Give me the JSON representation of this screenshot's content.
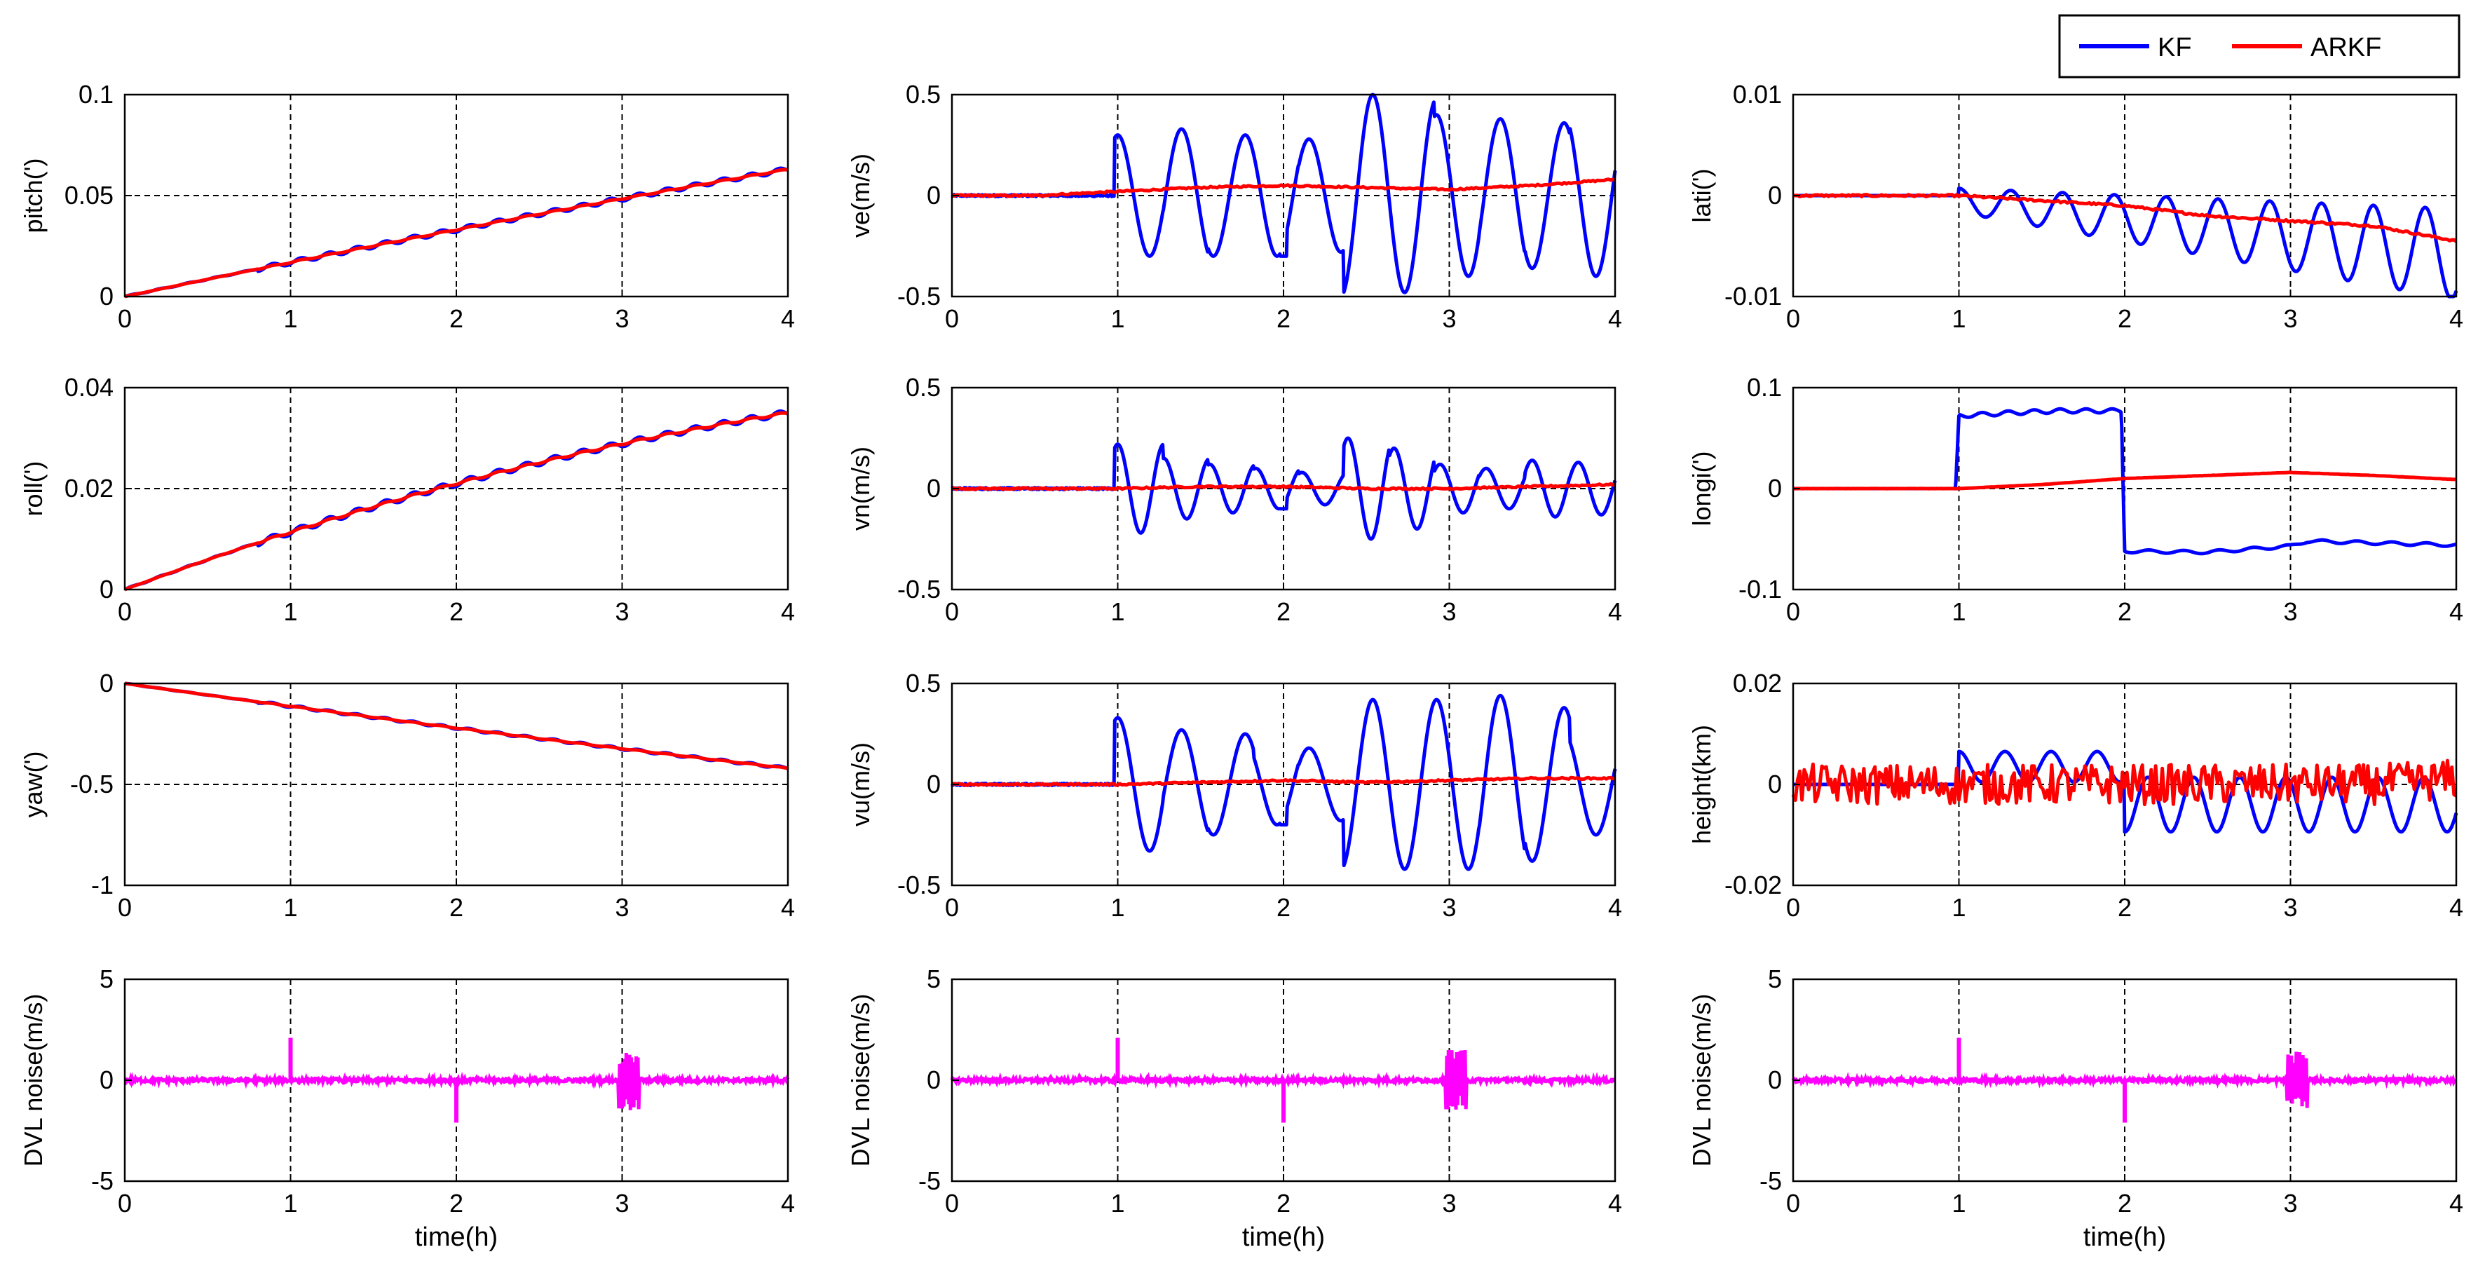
{
  "chart_data": {
    "type": "line",
    "title": "",
    "grid": "dashed at major ticks",
    "legend": {
      "position": "top-right",
      "entries": [
        {
          "label": "KF",
          "color": "#0000ff"
        },
        {
          "label": "ARKF",
          "color": "#ff0000"
        }
      ]
    },
    "noise_color": "#ff00ff",
    "x_ticks": [
      "0",
      "1",
      "2",
      "3",
      "4"
    ],
    "xlim": [
      0,
      4
    ],
    "xlabel": "time(h)",
    "panels": [
      {
        "ylabel": "pitch(')",
        "ylim": [
          0,
          0.1
        ],
        "yticks": [
          0,
          0.05,
          0.1
        ],
        "ytick_labels": [
          "0",
          "0.05",
          "0.1"
        ],
        "kf": {
          "kind": "smooth",
          "start": 0,
          "end": 0.063,
          "curve": 0.9,
          "ripple": 0.0012
        },
        "arkf": {
          "kind": "smooth",
          "start": 0,
          "end": 0.063,
          "curve": 0.9,
          "ripple": 0.0003
        }
      },
      {
        "ylabel": "ve(m/s)",
        "ylim": [
          -0.5,
          0.5
        ],
        "yticks": [
          -0.5,
          0,
          0.5
        ],
        "ytick_labels": [
          "-0.5",
          "0",
          "0.5"
        ],
        "kf": {
          "kind": "osc",
          "peaks": [
            0.3,
            0.33,
            0.3,
            0.3,
            0.28,
            0.5,
            0.48,
            0.4,
            0.38,
            0.36,
            0.4
          ],
          "freq": 2.6
        },
        "arkf": {
          "kind": "flat",
          "values": [
            0,
            0,
            0.02,
            0.04,
            0.05,
            0.04,
            0.03,
            0.05,
            0.08
          ]
        }
      },
      {
        "ylabel": "lati(')",
        "ylim": [
          -0.01,
          0.01
        ],
        "yticks": [
          -0.01,
          0,
          0.01
        ],
        "ytick_labels": [
          "-0.01",
          "0",
          "0.01"
        ],
        "kf": {
          "kind": "decay_osc",
          "amp_start": 0.0012,
          "amp_end": 0.0045,
          "trend_end": -0.005,
          "freq": 3.2
        },
        "arkf": {
          "kind": "trend",
          "values": [
            0,
            0,
            0,
            -0.0005,
            -0.001,
            -0.002,
            -0.0025,
            -0.003,
            -0.0045
          ]
        }
      },
      {
        "ylabel": "roll(')",
        "ylim": [
          0,
          0.04
        ],
        "yticks": [
          0,
          0.02,
          0.04
        ],
        "ytick_labels": [
          "0",
          "0.02",
          "0.04"
        ],
        "kf": {
          "kind": "smooth",
          "start": 0,
          "end": 0.035,
          "curve": 0.6,
          "ripple": 0.0006
        },
        "arkf": {
          "kind": "smooth",
          "start": 0,
          "end": 0.035,
          "curve": 0.6,
          "ripple": 0.0002
        }
      },
      {
        "ylabel": "vn(m/s)",
        "ylim": [
          -0.5,
          0.5
        ],
        "yticks": [
          -0.5,
          0,
          0.5
        ],
        "ytick_labels": [
          "-0.5",
          "0",
          "0.5"
        ],
        "kf": {
          "kind": "osc",
          "peaks": [
            0.22,
            0.15,
            0.12,
            0.1,
            0.08,
            0.25,
            0.2,
            0.12,
            0.1,
            0.14,
            0.13
          ],
          "freq": 3.6
        },
        "arkf": {
          "kind": "flat",
          "values": [
            0,
            0,
            0,
            0.01,
            0.01,
            0,
            0,
            0.01,
            0.02
          ]
        }
      },
      {
        "ylabel": "longi(')",
        "ylim": [
          -0.1,
          0.1
        ],
        "yticks": [
          -0.1,
          0,
          0.1
        ],
        "ytick_labels": [
          "-0.1",
          "0",
          "0.1"
        ],
        "kf": {
          "kind": "step",
          "points": [
            [
              0,
              0
            ],
            [
              0.98,
              0
            ],
            [
              1.0,
              0.072
            ],
            [
              1.3,
              0.075
            ],
            [
              1.6,
              0.077
            ],
            [
              1.98,
              0.077
            ],
            [
              2.0,
              -0.062
            ],
            [
              2.5,
              -0.063
            ],
            [
              3.0,
              -0.057
            ],
            [
              3.1,
              -0.052
            ],
            [
              4.0,
              -0.056
            ]
          ]
        },
        "arkf": {
          "kind": "trend",
          "values": [
            0,
            0,
            0,
            0.004,
            0.01,
            0.013,
            0.016,
            0.013,
            0.009
          ]
        }
      },
      {
        "ylabel": "yaw(')",
        "ylim": [
          -1,
          0
        ],
        "yticks": [
          -1,
          -0.5,
          0
        ],
        "ytick_labels": [
          "-1",
          "-0.5",
          "0"
        ],
        "kf": {
          "kind": "smooth",
          "start": 0,
          "end": -0.42,
          "curve": 0.9,
          "ripple": 0.006
        },
        "arkf": {
          "kind": "smooth",
          "start": 0,
          "end": -0.42,
          "curve": 0.9,
          "ripple": 0.002
        }
      },
      {
        "ylabel": "vu(m/s)",
        "ylim": [
          -0.5,
          0.5
        ],
        "yticks": [
          -0.5,
          0,
          0.5
        ],
        "ytick_labels": [
          "-0.5",
          "0",
          "0.5"
        ],
        "kf": {
          "kind": "osc",
          "peaks": [
            0.33,
            0.27,
            0.25,
            0.2,
            0.18,
            0.42,
            0.42,
            0.42,
            0.44,
            0.38,
            0.25
          ],
          "freq": 2.6
        },
        "arkf": {
          "kind": "flat",
          "values": [
            0,
            0,
            0,
            0.01,
            0.02,
            0.01,
            0.02,
            0.03,
            0.03
          ]
        }
      },
      {
        "ylabel": "height(km)",
        "ylim": [
          -0.02,
          0.02
        ],
        "yticks": [
          -0.02,
          0,
          0.02
        ],
        "ytick_labels": [
          "-0.02",
          "0",
          "0.02"
        ],
        "kf": {
          "kind": "height",
          "amp1": 0.0055,
          "amp2": 0.009,
          "freq": 3.6
        },
        "arkf": {
          "kind": "flat",
          "values": [
            0,
            0,
            0,
            0,
            0,
            0,
            0,
            0,
            0.001
          ]
        }
      },
      {
        "ylabel": "DVL  noise(m/s)",
        "ylim": [
          -5,
          5
        ],
        "yticks": [
          -5,
          0,
          5
        ],
        "ytick_labels": [
          "-5",
          "0",
          "5"
        ],
        "noise": {
          "spikes": [
            {
              "x": 1.0,
              "y": 2.1
            },
            {
              "x": 2.0,
              "y": -2.1
            }
          ],
          "burst": {
            "from": 2.98,
            "to": 3.1,
            "amp": 1.5
          },
          "floor": 0.1
        }
      },
      {
        "ylabel": "DVL  noise(m/s)",
        "ylim": [
          -5,
          5
        ],
        "yticks": [
          -5,
          0,
          5
        ],
        "ytick_labels": [
          "-5",
          "0",
          "5"
        ],
        "noise": {
          "spikes": [
            {
              "x": 1.0,
              "y": 2.1
            },
            {
              "x": 2.0,
              "y": -2.1
            }
          ],
          "burst": {
            "from": 2.98,
            "to": 3.1,
            "amp": 1.5
          },
          "floor": 0.1
        }
      },
      {
        "ylabel": "DVL  noise(m/s)",
        "ylim": [
          -5,
          5
        ],
        "yticks": [
          -5,
          0,
          5
        ],
        "ytick_labels": [
          "-5",
          "0",
          "5"
        ],
        "noise": {
          "spikes": [
            {
              "x": 1.0,
              "y": 2.1
            },
            {
              "x": 2.0,
              "y": -2.1
            }
          ],
          "burst": {
            "from": 2.98,
            "to": 3.1,
            "amp": 1.5
          },
          "floor": 0.1
        }
      }
    ]
  }
}
